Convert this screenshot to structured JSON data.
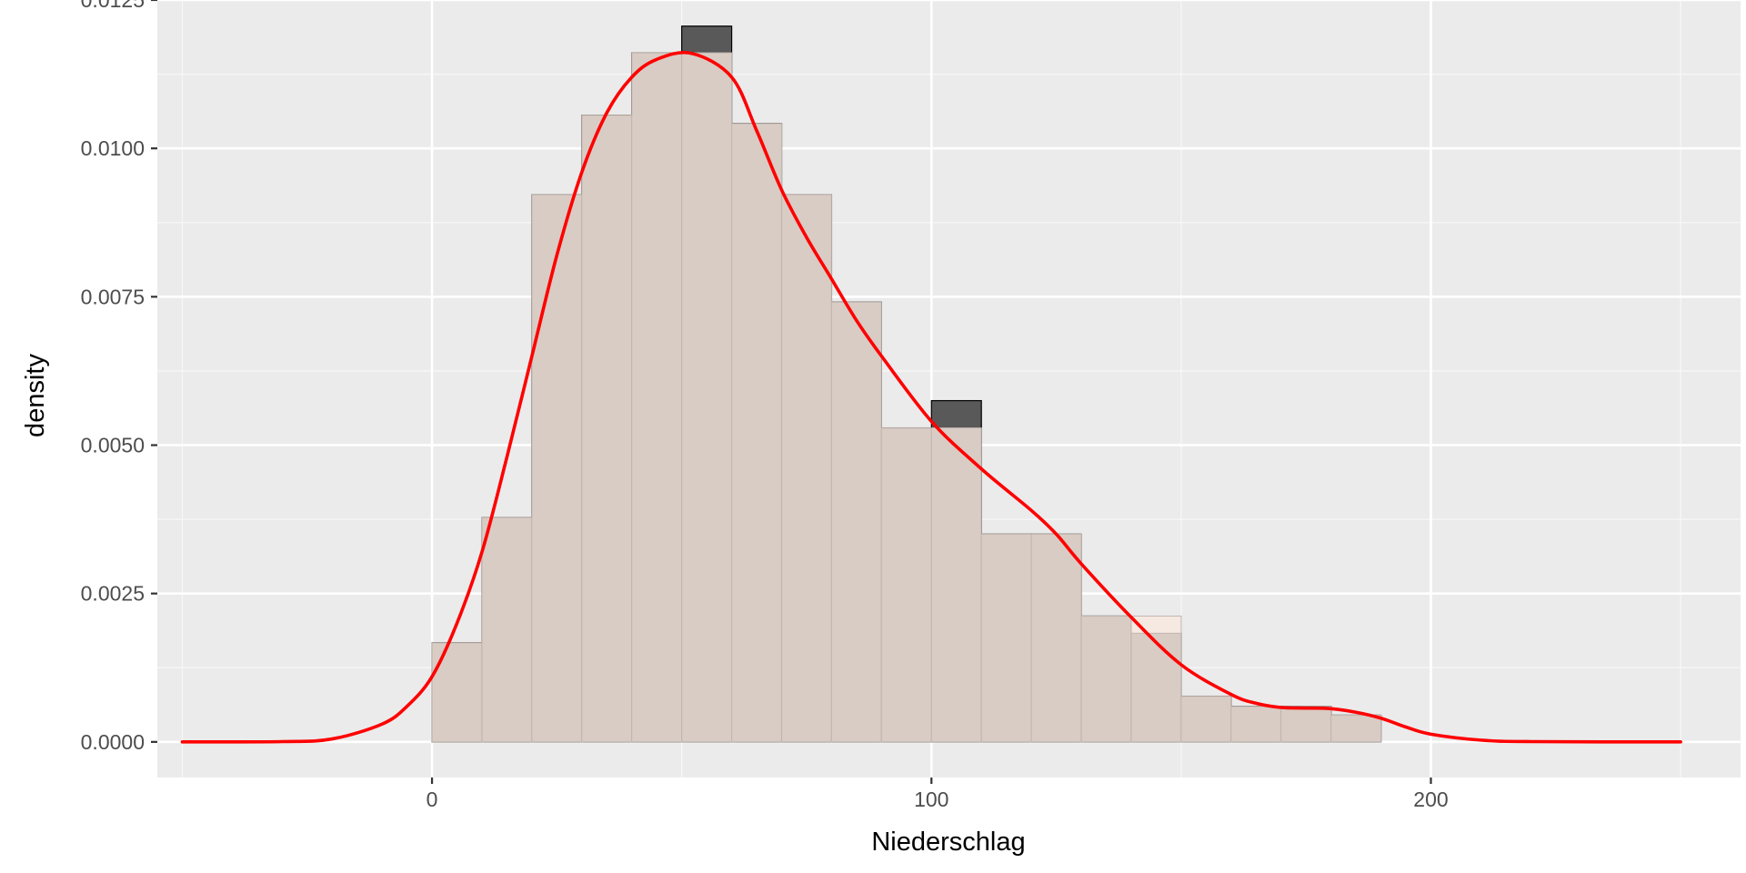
{
  "chart_data": {
    "type": "histogram",
    "xlabel": "Niederschlag",
    "ylabel": "density",
    "xlim": [
      -55,
      262
    ],
    "ylim": [
      -0.0006,
      0.0125
    ],
    "x_ticks": [
      0,
      100,
      200
    ],
    "x_tick_labels": [
      "0",
      "100",
      "200"
    ],
    "y_ticks": [
      0,
      0.0025,
      0.005,
      0.0075,
      0.01,
      0.0125
    ],
    "y_tick_labels": [
      "0.0000",
      "0.0025",
      "0.0050",
      "0.0075",
      "0.0100",
      "0.0125"
    ],
    "grid": true,
    "bins": [
      {
        "x0": 0,
        "x1": 10,
        "density": 0.00167
      },
      {
        "x0": 10,
        "x1": 20,
        "density": 0.00378
      },
      {
        "x0": 20,
        "x1": 30,
        "density": 0.00922
      },
      {
        "x0": 30,
        "x1": 40,
        "density": 0.01056
      },
      {
        "x0": 40,
        "x1": 50,
        "density": 0.01161
      },
      {
        "x0": 50,
        "x1": 60,
        "density": 0.01206
      },
      {
        "x0": 60,
        "x1": 70,
        "density": 0.01042
      },
      {
        "x0": 70,
        "x1": 80,
        "density": 0.00922
      },
      {
        "x0": 80,
        "x1": 90,
        "density": 0.00741
      },
      {
        "x0": 90,
        "x1": 100,
        "density": 0.00529
      },
      {
        "x0": 100,
        "x1": 110,
        "density": 0.00575
      },
      {
        "x0": 110,
        "x1": 120,
        "density": 0.0035
      },
      {
        "x0": 120,
        "x1": 130,
        "density": 0.0035
      },
      {
        "x0": 130,
        "x1": 140,
        "density": 0.00212
      },
      {
        "x0": 140,
        "x1": 150,
        "density": 0.00183
      },
      {
        "x0": 150,
        "x1": 160,
        "density": 0.00077
      },
      {
        "x0": 160,
        "x1": 170,
        "density": 0.0006
      },
      {
        "x0": 170,
        "x1": 180,
        "density": 0.0006
      },
      {
        "x0": 180,
        "x1": 190,
        "density": 0.00045
      }
    ],
    "overlay_bins": [
      {
        "x0": 0,
        "x1": 10,
        "density": 0.00167
      },
      {
        "x0": 10,
        "x1": 20,
        "density": 0.00378
      },
      {
        "x0": 20,
        "x1": 30,
        "density": 0.00922
      },
      {
        "x0": 30,
        "x1": 40,
        "density": 0.01056
      },
      {
        "x0": 40,
        "x1": 50,
        "density": 0.01161
      },
      {
        "x0": 50,
        "x1": 60,
        "density": 0.01161
      },
      {
        "x0": 60,
        "x1": 70,
        "density": 0.01042
      },
      {
        "x0": 70,
        "x1": 80,
        "density": 0.00922
      },
      {
        "x0": 80,
        "x1": 90,
        "density": 0.00741
      },
      {
        "x0": 90,
        "x1": 100,
        "density": 0.00529
      },
      {
        "x0": 100,
        "x1": 110,
        "density": 0.00529
      },
      {
        "x0": 110,
        "x1": 120,
        "density": 0.0035
      },
      {
        "x0": 120,
        "x1": 130,
        "density": 0.0035
      },
      {
        "x0": 130,
        "x1": 140,
        "density": 0.00212
      },
      {
        "x0": 140,
        "x1": 150,
        "density": 0.00212
      },
      {
        "x0": 150,
        "x1": 160,
        "density": 0.00077
      },
      {
        "x0": 160,
        "x1": 170,
        "density": 0.0006
      },
      {
        "x0": 170,
        "x1": 180,
        "density": 0.0006
      },
      {
        "x0": 180,
        "x1": 190,
        "density": 0.00045
      }
    ],
    "density_curve": {
      "x": [
        -50,
        -30,
        -20,
        -10,
        -5,
        0,
        5,
        10,
        15,
        20,
        25,
        30,
        35,
        40,
        45,
        52,
        60,
        65,
        70,
        75,
        80,
        85,
        90,
        100,
        110,
        120,
        125,
        130,
        140,
        150,
        160,
        165,
        170,
        175,
        180,
        185,
        190,
        195,
        200,
        210,
        220,
        250
      ],
      "y": [
        0,
        5e-06,
        5e-05,
        0.0003,
        0.0006,
        0.0011,
        0.002,
        0.0032,
        0.0048,
        0.0065,
        0.0082,
        0.0096,
        0.0106,
        0.0112,
        0.0115,
        0.0116,
        0.0112,
        0.0103,
        0.0093,
        0.0085,
        0.0078,
        0.0071,
        0.0065,
        0.0054,
        0.0046,
        0.0039,
        0.0035,
        0.003,
        0.0021,
        0.0013,
        0.0008,
        0.00065,
        0.00058,
        0.00057,
        0.00056,
        0.0005,
        0.0004,
        0.00025,
        0.00013,
        3e-05,
        5e-06,
        0
      ]
    },
    "colors": {
      "panel": "#ebebeb",
      "grid_major": "#ffffff",
      "grid_minor": "#f7f7f7",
      "bar_fill": "#595959",
      "bar_outline": "#000000",
      "overlay_fill": "#f7e8df",
      "overlay_opacity": 0.8,
      "overlay_outline": "#c2b6b0",
      "curve": "#ff0000"
    }
  }
}
